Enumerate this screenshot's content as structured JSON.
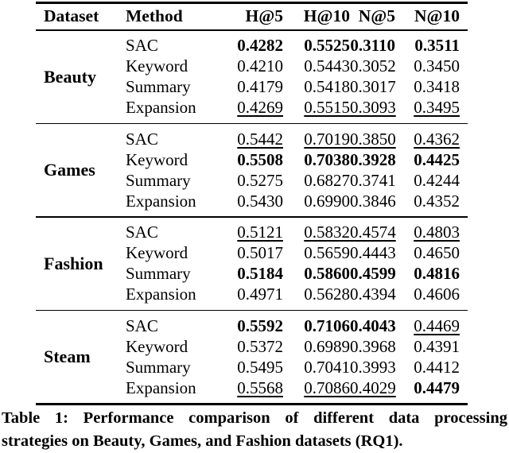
{
  "table": {
    "columns": [
      "Dataset",
      "Method",
      "H@5",
      "H@10",
      "N@5",
      "N@10"
    ],
    "groups": [
      {
        "dataset": "Beauty",
        "rows": [
          {
            "method": "SAC",
            "v": [
              {
                "t": "0.4282",
                "s": "b"
              },
              {
                "t": "0.5525",
                "s": "b"
              },
              {
                "t": "0.3110",
                "s": "b"
              },
              {
                "t": "0.3511",
                "s": "b"
              }
            ]
          },
          {
            "method": "Keyword",
            "v": [
              {
                "t": "0.4210"
              },
              {
                "t": "0.5443"
              },
              {
                "t": "0.3052"
              },
              {
                "t": "0.3450"
              }
            ]
          },
          {
            "method": "Summary",
            "v": [
              {
                "t": "0.4179"
              },
              {
                "t": "0.5418"
              },
              {
                "t": "0.3017"
              },
              {
                "t": "0.3418"
              }
            ]
          },
          {
            "method": "Expansion",
            "v": [
              {
                "t": "0.4269",
                "s": "u"
              },
              {
                "t": "0.5515",
                "s": "u"
              },
              {
                "t": "0.3093",
                "s": "u"
              },
              {
                "t": "0.3495",
                "s": "u"
              }
            ]
          }
        ]
      },
      {
        "dataset": "Games",
        "rows": [
          {
            "method": "SAC",
            "v": [
              {
                "t": "0.5442",
                "s": "u"
              },
              {
                "t": "0.7019",
                "s": "u"
              },
              {
                "t": "0.3850",
                "s": "u"
              },
              {
                "t": "0.4362",
                "s": "u"
              }
            ]
          },
          {
            "method": "Keyword",
            "v": [
              {
                "t": "0.5508",
                "s": "b"
              },
              {
                "t": "0.7038",
                "s": "b"
              },
              {
                "t": "0.3928",
                "s": "b"
              },
              {
                "t": "0.4425",
                "s": "b"
              }
            ]
          },
          {
            "method": "Summary",
            "v": [
              {
                "t": "0.5275"
              },
              {
                "t": "0.6827"
              },
              {
                "t": "0.3741"
              },
              {
                "t": "0.4244"
              }
            ]
          },
          {
            "method": "Expansion",
            "v": [
              {
                "t": "0.5430"
              },
              {
                "t": "0.6990"
              },
              {
                "t": "0.3846"
              },
              {
                "t": "0.4352"
              }
            ]
          }
        ]
      },
      {
        "dataset": "Fashion",
        "rows": [
          {
            "method": "SAC",
            "v": [
              {
                "t": "0.5121",
                "s": "u"
              },
              {
                "t": "0.5832",
                "s": "u"
              },
              {
                "t": "0.4574",
                "s": "u"
              },
              {
                "t": "0.4803",
                "s": "u"
              }
            ]
          },
          {
            "method": "Keyword",
            "v": [
              {
                "t": "0.5017"
              },
              {
                "t": "0.5659"
              },
              {
                "t": "0.4443"
              },
              {
                "t": "0.4650"
              }
            ]
          },
          {
            "method": "Summary",
            "v": [
              {
                "t": "0.5184",
                "s": "b"
              },
              {
                "t": "0.5860",
                "s": "b"
              },
              {
                "t": "0.4599",
                "s": "b"
              },
              {
                "t": "0.4816",
                "s": "b"
              }
            ]
          },
          {
            "method": "Expansion",
            "v": [
              {
                "t": "0.4971"
              },
              {
                "t": "0.5628"
              },
              {
                "t": "0.4394"
              },
              {
                "t": "0.4606"
              }
            ]
          }
        ]
      },
      {
        "dataset": "Steam",
        "rows": [
          {
            "method": "SAC",
            "v": [
              {
                "t": "0.5592",
                "s": "b"
              },
              {
                "t": "0.7106",
                "s": "b"
              },
              {
                "t": "0.4043",
                "s": "b"
              },
              {
                "t": "0.4469",
                "s": "u"
              }
            ]
          },
          {
            "method": "Keyword",
            "v": [
              {
                "t": "0.5372"
              },
              {
                "t": "0.6989"
              },
              {
                "t": "0.3968"
              },
              {
                "t": "0.4391"
              }
            ]
          },
          {
            "method": "Summary",
            "v": [
              {
                "t": "0.5495"
              },
              {
                "t": "0.7041"
              },
              {
                "t": "0.3993"
              },
              {
                "t": "0.4412"
              }
            ]
          },
          {
            "method": "Expansion",
            "v": [
              {
                "t": "0.5568",
                "s": "u"
              },
              {
                "t": "0.7086",
                "s": "u"
              },
              {
                "t": "0.4029",
                "s": "u"
              },
              {
                "t": "0.4479",
                "s": "b"
              }
            ]
          }
        ]
      }
    ]
  },
  "caption": {
    "line1": "Table 1: Performance comparison of different data processing",
    "line2": "strategies on Beauty, Games, and Fashion datasets (RQ1)."
  }
}
